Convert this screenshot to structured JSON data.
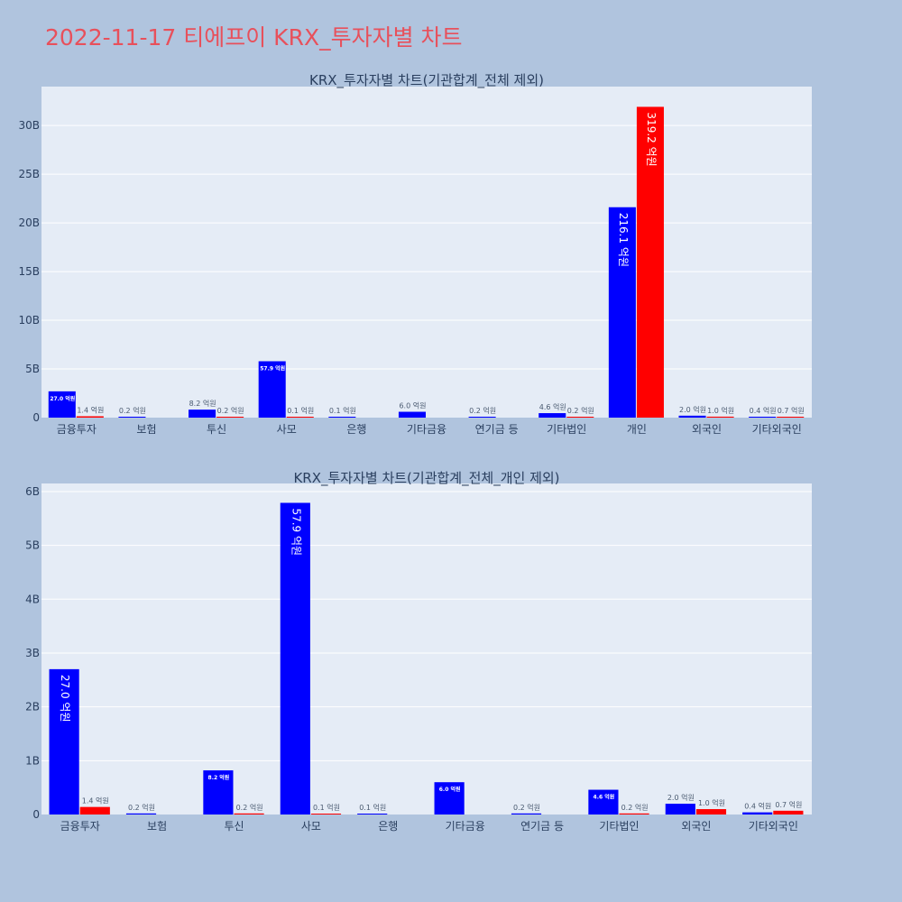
{
  "title": "2022-11-17 티에프이 KRX_투자자별 차트",
  "colors": {
    "buy": "#0000ff",
    "sell": "#ff0000",
    "title": "#e8505b"
  },
  "chart_data": [
    {
      "type": "bar",
      "title": "KRX_투자자별 차트(기관합계_전체 제외)",
      "categories": [
        "금융투자",
        "보험",
        "투신",
        "사모",
        "은행",
        "기타금융",
        "연기금 등",
        "기타법인",
        "개인",
        "외국인",
        "기타외국인"
      ],
      "ylim": [
        0,
        34000000000
      ],
      "yticks": [
        0,
        5000000000,
        10000000000,
        15000000000,
        20000000000,
        25000000000,
        30000000000
      ],
      "ytick_labels": [
        "0",
        "5B",
        "10B",
        "15B",
        "20B",
        "25B",
        "30B"
      ],
      "series": [
        {
          "color": "#0000ff",
          "values": [
            2700000000,
            20000000,
            820000000,
            5790000000,
            10000000,
            600000000,
            20000000,
            460000000,
            21610000000,
            200000000,
            40000000
          ],
          "labels": [
            "27.0 억원",
            "0.2 억원",
            "8.2 억원",
            "57.9 억원",
            "0.1 억원",
            "6.0 억원",
            "0.2 억원",
            "4.6 억원",
            "216.1 억원",
            "2.0 억원",
            "0.4 억원"
          ]
        },
        {
          "color": "#ff0000",
          "values": [
            140000000,
            0,
            20000000,
            10000000,
            0,
            0,
            0,
            20000000,
            31920000000,
            100000000,
            70000000
          ],
          "labels": [
            "1.4 억원",
            "",
            "0.2 억원",
            "0.1 억원",
            "",
            "",
            "",
            "0.2 억원",
            "319.2 억원",
            "1.0 억원",
            "0.7 억원"
          ]
        }
      ]
    },
    {
      "type": "bar",
      "title": "KRX_투자자별 차트(기관합계_전체_개인 제외)",
      "categories": [
        "금융투자",
        "보험",
        "투신",
        "사모",
        "은행",
        "기타금융",
        "연기금 등",
        "기타법인",
        "외국인",
        "기타외국인"
      ],
      "ylim": [
        0,
        6150000000
      ],
      "yticks": [
        0,
        1000000000,
        2000000000,
        3000000000,
        4000000000,
        5000000000,
        6000000000
      ],
      "ytick_labels": [
        "0",
        "1B",
        "2B",
        "3B",
        "4B",
        "5B",
        "6B"
      ],
      "series": [
        {
          "color": "#0000ff",
          "values": [
            2700000000,
            20000000,
            820000000,
            5790000000,
            10000000,
            600000000,
            20000000,
            460000000,
            200000000,
            40000000
          ],
          "labels": [
            "27.0 억원",
            "0.2 억원",
            "8.2 억원",
            "57.9 억원",
            "0.1 억원",
            "6.0 억원",
            "0.2 억원",
            "4.6 억원",
            "2.0 억원",
            "0.4 억원"
          ]
        },
        {
          "color": "#ff0000",
          "values": [
            140000000,
            0,
            20000000,
            10000000,
            0,
            0,
            0,
            20000000,
            100000000,
            70000000
          ],
          "labels": [
            "1.4 억원",
            "",
            "0.2 억원",
            "0.1 억원",
            "",
            "",
            "",
            "0.2 억원",
            "1.0 억원",
            "0.7 억원"
          ]
        }
      ]
    }
  ]
}
